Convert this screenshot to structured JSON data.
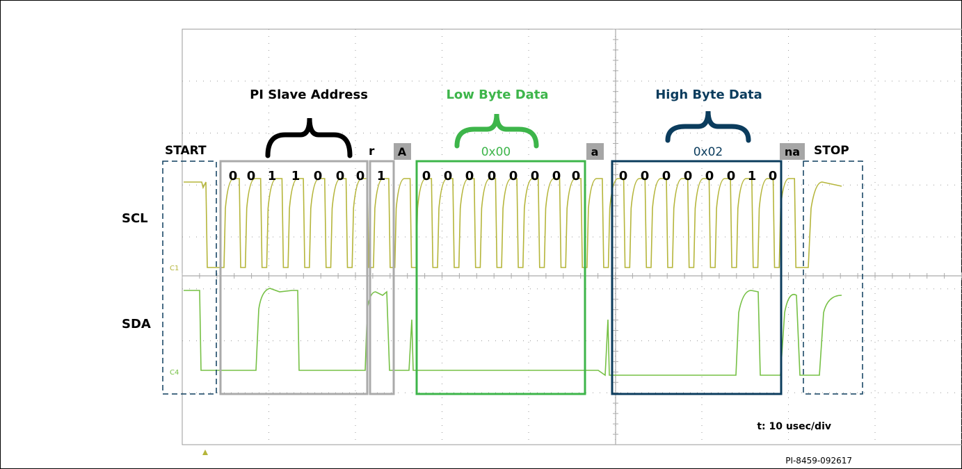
{
  "labels": {
    "pi_slave_address": "PI Slave Address",
    "low_byte_data": "Low Byte Data",
    "high_byte_data": "High Byte Data",
    "start": "START",
    "stop": "STOP",
    "scl": "SCL",
    "sda": "SDA",
    "ch1": "C1",
    "ch4": "C4",
    "r": "r",
    "ack_A": "A",
    "ack_a": "a",
    "nack": "na",
    "low_hex": "0x00",
    "high_hex": "0x02",
    "timebase": "t: 10 usec/div",
    "figure_id": "PI-8459-092617"
  },
  "bits": {
    "address": [
      "0",
      "0",
      "1",
      "1",
      "0",
      "0",
      "0"
    ],
    "rw": "1",
    "low": [
      "0",
      "0",
      "0",
      "0",
      "0",
      "0",
      "0",
      "0"
    ],
    "high": [
      "0",
      "0",
      "0",
      "0",
      "0",
      "0",
      "1",
      "0"
    ]
  },
  "colors": {
    "scl_trace": "#b5b53a",
    "sda_trace": "#76c045",
    "address_box": "#aaaaaa",
    "low_box": "#3db54a",
    "high_box": "#0b3c5d",
    "grid": "#999999",
    "tag_bg": "#a6a6a6"
  }
}
